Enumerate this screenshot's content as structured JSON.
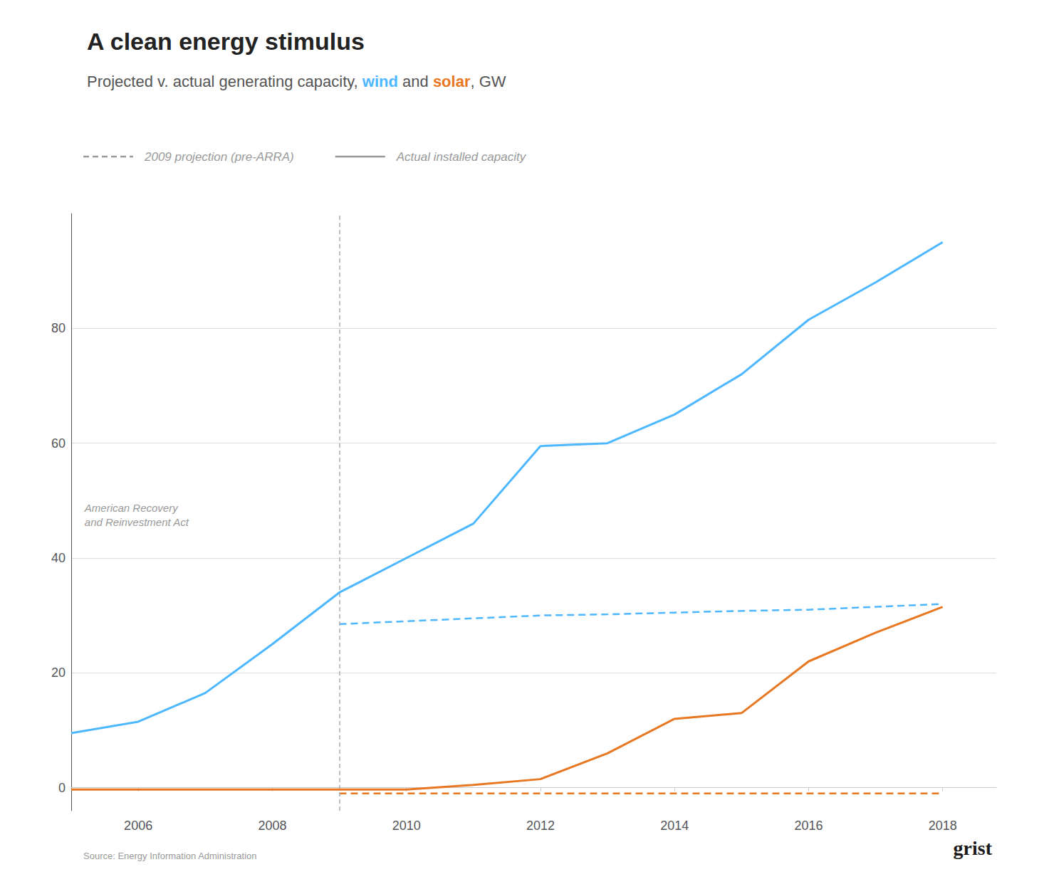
{
  "chart_data": {
    "type": "line",
    "title": "A clean energy stimulus",
    "subtitle": [
      "Projected v. actual generating capacity, ",
      "wind",
      " and ",
      "solar",
      ", GW"
    ],
    "series": [
      {
        "name": "wind",
        "color": "#4db8ff",
        "line_style": "solid",
        "x": [
          2005,
          2006,
          2007,
          2008,
          2009,
          2010,
          2011,
          2012,
          2013,
          2014,
          2015,
          2016,
          2017,
          2018
        ],
        "values": [
          9.5,
          11.5,
          16.5,
          25.0,
          34.0,
          40.0,
          46.0,
          59.5,
          60.0,
          65.0,
          72.0,
          81.5,
          88.0,
          95.0
        ]
      },
      {
        "name": "solar",
        "color": "#e87722",
        "line_style": "solid",
        "x": [
          2005,
          2006,
          2007,
          2008,
          2009,
          2010,
          2011,
          2012,
          2013,
          2014,
          2015,
          2016,
          2017,
          2018
        ],
        "values": [
          -0.3,
          -0.3,
          -0.3,
          -0.3,
          -0.3,
          -0.3,
          0.5,
          1.5,
          6.0,
          12.0,
          13.0,
          22.0,
          27.0,
          31.5
        ]
      },
      {
        "name": "wind",
        "color": "#4db8ff",
        "line_style": "dashed",
        "x": [
          2009,
          2010,
          2011,
          2012,
          2013,
          2014,
          2015,
          2016,
          2017,
          2018
        ],
        "values": [
          28.5,
          29.0,
          29.5,
          30.0,
          30.2,
          30.5,
          30.8,
          31.0,
          31.5,
          32.0
        ]
      },
      {
        "name": "solar",
        "color": "#e87722",
        "line_style": "dashed",
        "x": [
          2009,
          2010,
          2011,
          2012,
          2013,
          2014,
          2015,
          2016,
          2017,
          2018
        ],
        "values": [
          -1.0,
          -1.0,
          -1.0,
          -1.0,
          -1.0,
          -1.0,
          -1.0,
          -1.0,
          -1.0,
          -1.0
        ]
      }
    ],
    "xlim": [
      2005.0,
      2018.8
    ],
    "ylim": [
      -4,
      100
    ],
    "xticks": [
      2006,
      2008,
      2010,
      2012,
      2014,
      2016,
      2018
    ],
    "yticks": [
      0,
      20,
      40,
      60,
      80
    ],
    "grid": "y",
    "vline": 2009,
    "annotations": [
      {
        "text": "American Recovery\nand Reinvestment Act",
        "x": 2005.2,
        "y": 50
      }
    ],
    "line_style_legend": [
      {
        "line_style": "dashed",
        "label": "2009 projection (pre-ARRA)"
      },
      {
        "line_style": "solid",
        "label": "Actual installed capacity"
      }
    ],
    "source": "Source: Energy Information Administration",
    "logo": "grist"
  }
}
